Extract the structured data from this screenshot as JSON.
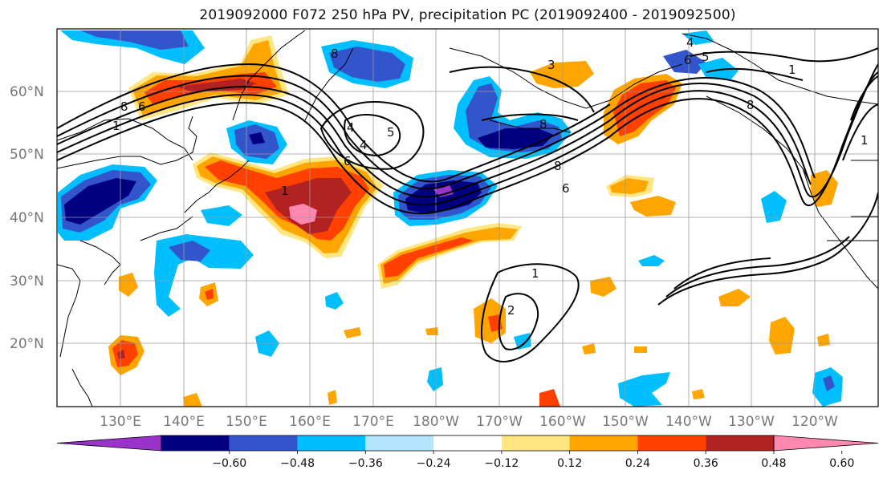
{
  "title": "2019092000 F072 250 hPa PV, precipitation PC (2019092400 - 2019092500)",
  "latitude_labels": [
    "60°N",
    "50°N",
    "40°N",
    "30°N",
    "20°N"
  ],
  "longitude_labels": [
    "130°E",
    "140°E",
    "150°E",
    "160°E",
    "170°E",
    "180°W",
    "170°W",
    "160°W",
    "150°W",
    "140°W",
    "130°W",
    "120°W"
  ],
  "colorbar": {
    "ticks": [
      "−0.60",
      "−0.48",
      "−0.36",
      "−0.24",
      "−0.12",
      "0.12",
      "0.24",
      "0.36",
      "0.48",
      "0.60"
    ],
    "colors": [
      "#9933cc",
      "#000080",
      "#3355cc",
      "#00bfff",
      "#b3e5ff",
      "#ffffff",
      "#ffe680",
      "#ffa500",
      "#ff4000",
      "#b22222",
      "#ff88b0"
    ]
  },
  "contour_labels": [
    "8",
    "6",
    "4",
    "5",
    "4",
    "8",
    "6",
    "8",
    "3",
    "8",
    "4",
    "6",
    "5",
    "1",
    "1",
    "8",
    "6",
    "1",
    "2",
    "1",
    "1"
  ]
}
